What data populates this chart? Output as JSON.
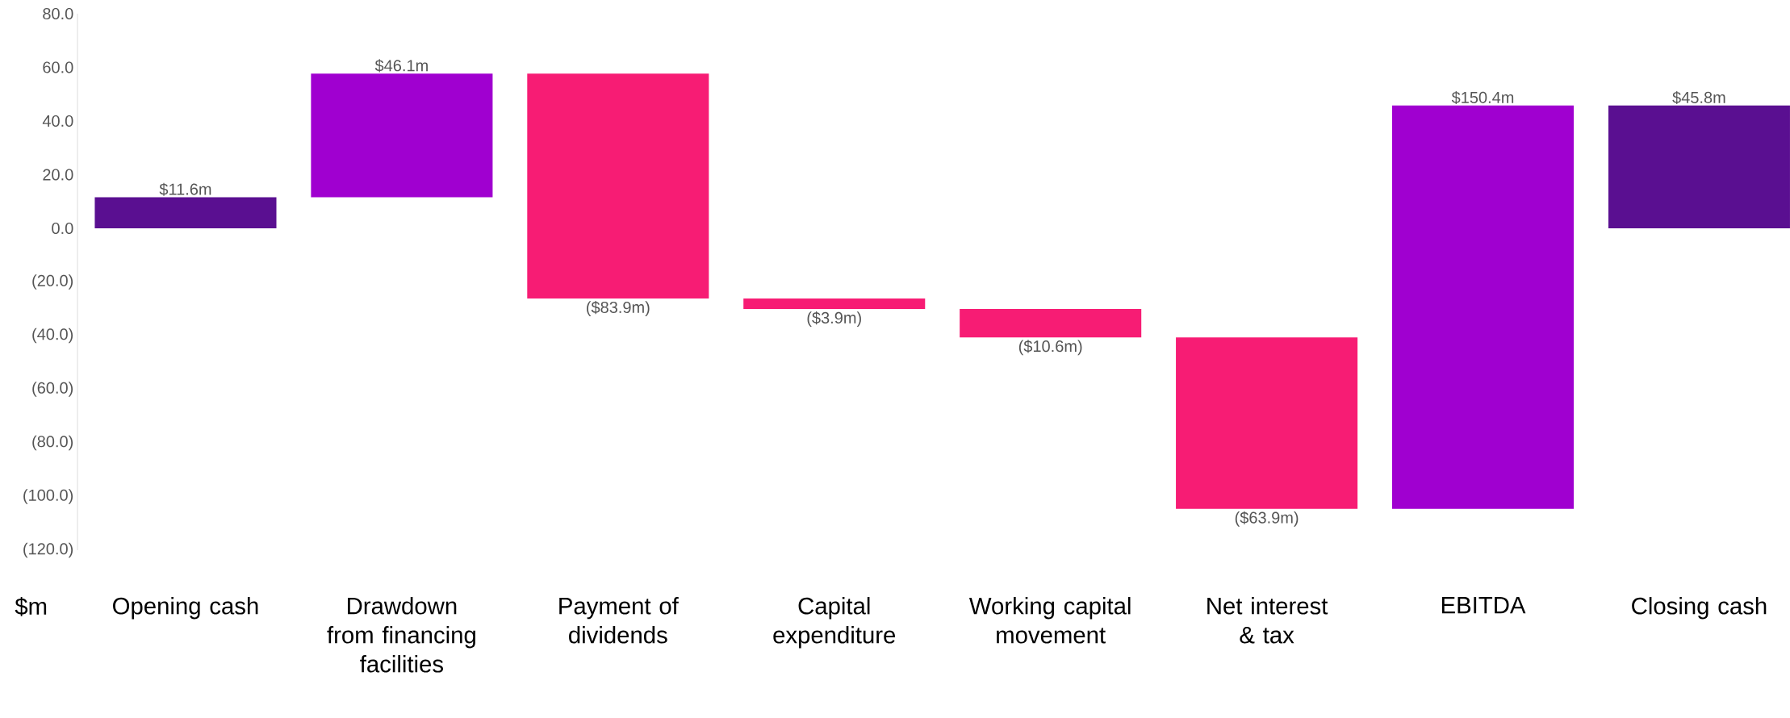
{
  "chart_data": {
    "type": "bar",
    "ylabel": "$m",
    "categories": [
      "Opening cash",
      "Drawdown from financing facilities",
      "Payment of dividends",
      "Capital expenditure",
      "Working capital movement",
      "Net interest & tax",
      "EBITDA",
      "Closing cash"
    ],
    "values": [
      11.6,
      46.1,
      -83.9,
      -3.9,
      -10.6,
      -63.9,
      150.4,
      45.8
    ],
    "base": [
      0,
      11.6,
      57.7,
      -26.2,
      -30.1,
      -40.7,
      -104.6,
      0
    ],
    "colors": [
      "#5a0f91",
      "#a000d0",
      "#f71c74",
      "#f71c74",
      "#f71c74",
      "#f71c74",
      "#a000d0",
      "#5a0f91"
    ],
    "value_labels": [
      "$11.6m",
      "$46.1m",
      "($83.9m)",
      "($3.9m)",
      "($10.6m)",
      "($63.9m)",
      "$150.4m",
      "$45.8m"
    ],
    "ylim": [
      -120,
      80
    ],
    "yticks": [
      {
        "value": 80,
        "label": "80.0"
      },
      {
        "value": 60,
        "label": "60.0"
      },
      {
        "value": 40,
        "label": "40.0"
      },
      {
        "value": 20,
        "label": "20.0"
      },
      {
        "value": 0,
        "label": "0.0"
      },
      {
        "value": -20,
        "label": "(20.0)"
      },
      {
        "value": -40,
        "label": "(40.0)"
      },
      {
        "value": -60,
        "label": "(60.0)"
      },
      {
        "value": -80,
        "label": "(80.0)"
      },
      {
        "value": -100,
        "label": "(100.0)"
      },
      {
        "value": -120,
        "label": "(120.0)"
      }
    ],
    "grid": false
  }
}
